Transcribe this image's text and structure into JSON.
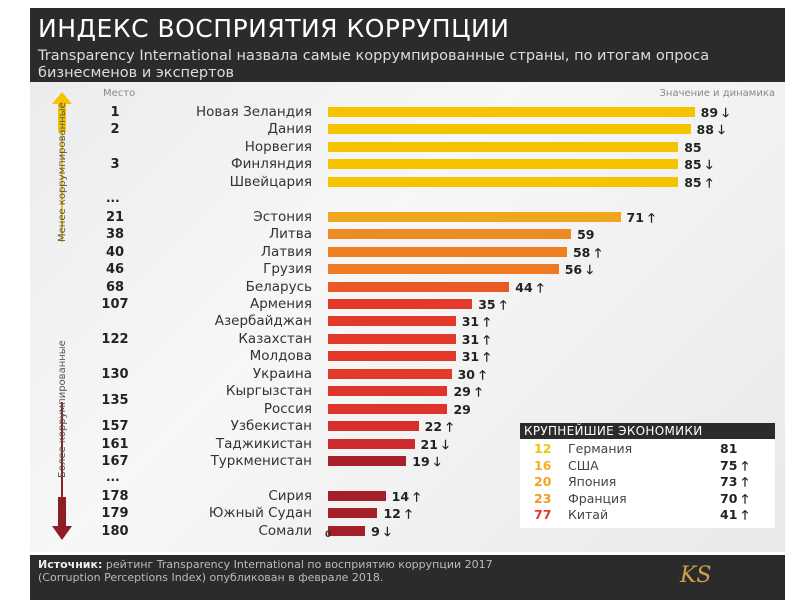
{
  "header": {
    "title": "ИНДЕКС ВОСПРИЯТИЯ КОРРУПЦИИ",
    "subtitle": "Transparency International назвала самые коррумпированные страны, по итогам опроса бизнесменов и экспертов"
  },
  "chart_data": {
    "type": "bar",
    "orientation": "horizontal",
    "col_rank": "Место",
    "col_value": "Значение и динамика",
    "side_top": "Менее коррумпированные",
    "side_bottom": "Более коррумпированные",
    "xmin": 0,
    "axis_zero_label": "0",
    "ellipsis": "...",
    "rows": [
      {
        "rank": "1",
        "country": "Новая Зеландия",
        "value": 89,
        "trend": "down",
        "color": "#f5c400"
      },
      {
        "rank": "2",
        "country": "Дания",
        "value": 88,
        "trend": "down",
        "color": "#f5c400"
      },
      {
        "rank": "",
        "country": "Норвегия",
        "value": 85,
        "trend": "",
        "color": "#f5c400"
      },
      {
        "rank": "3",
        "country": "Финляндия",
        "value": 85,
        "trend": "down",
        "color": "#f5c400"
      },
      {
        "rank": "",
        "country": "Швейцария",
        "value": 85,
        "trend": "up",
        "color": "#f5c400"
      },
      {
        "sep": true
      },
      {
        "rank": "21",
        "country": "Эстония",
        "value": 71,
        "trend": "up",
        "color": "#f2a51e"
      },
      {
        "rank": "38",
        "country": "Литва",
        "value": 59,
        "trend": "",
        "color": "#ef8a22"
      },
      {
        "rank": "40",
        "country": "Латвия",
        "value": 58,
        "trend": "up",
        "color": "#ef8022"
      },
      {
        "rank": "46",
        "country": "Грузия",
        "value": 56,
        "trend": "down",
        "color": "#ee7a23"
      },
      {
        "rank": "68",
        "country": "Беларусь",
        "value": 44,
        "trend": "up",
        "color": "#ea5a27"
      },
      {
        "rank": "107",
        "country": "Армения",
        "value": 35,
        "trend": "up",
        "color": "#e2392b"
      },
      {
        "rank": "",
        "country": "Азербайджан",
        "value": 31,
        "trend": "up",
        "color": "#e2392b"
      },
      {
        "rank": "122",
        "country": "Казахстан",
        "value": 31,
        "trend": "up",
        "color": "#e2392b"
      },
      {
        "rank": "",
        "country": "Молдова",
        "value": 31,
        "trend": "up",
        "color": "#e2392b"
      },
      {
        "rank": "130",
        "country": "Украина",
        "value": 30,
        "trend": "up",
        "color": "#e2392b"
      },
      {
        "rank": "135",
        "country": "Кыргызстан",
        "value": 29,
        "trend": "up",
        "color": "#de342c",
        "rank_between": true
      },
      {
        "rank": "",
        "country": "Россия",
        "value": 29,
        "trend": "",
        "color": "#de342c"
      },
      {
        "rank": "157",
        "country": "Узбекистан",
        "value": 22,
        "trend": "up",
        "color": "#d62f2d"
      },
      {
        "rank": "161",
        "country": "Таджикистан",
        "value": 21,
        "trend": "down",
        "color": "#cc2c2d"
      },
      {
        "rank": "167",
        "country": "Туркменистан",
        "value": 19,
        "trend": "down",
        "color": "#a8202a"
      },
      {
        "sep": true
      },
      {
        "rank": "178",
        "country": "Сирия",
        "value": 14,
        "trend": "up",
        "color": "#a3202a"
      },
      {
        "rank": "179",
        "country": "Южный Судан",
        "value": 12,
        "trend": "up",
        "color": "#a3202a"
      },
      {
        "rank": "180",
        "country": "Сомали",
        "value": 9,
        "trend": "down",
        "color": "#a3202a"
      }
    ]
  },
  "economies": {
    "title": "КРУПНЕЙШИЕ ЭКОНОМИКИ",
    "rows": [
      {
        "rank": "12",
        "country": "Германия",
        "value": "81",
        "trend": "",
        "color": "#f5c400"
      },
      {
        "rank": "16",
        "country": "США",
        "value": "75",
        "trend": "up",
        "color": "#f2b21e"
      },
      {
        "rank": "20",
        "country": "Япония",
        "value": "73",
        "trend": "up",
        "color": "#f0a520"
      },
      {
        "rank": "23",
        "country": "Франция",
        "value": "70",
        "trend": "up",
        "color": "#ef9a22"
      },
      {
        "rank": "77",
        "country": "Китай",
        "value": "41",
        "trend": "up",
        "color": "#e2392b"
      }
    ]
  },
  "footer": {
    "source_label": "Источник:",
    "source_text": " рейтинг Transparency International по восприятию коррупции 2017 (Corruption Perceptions Index) опубликован в феврале 2018.",
    "logo": "KS"
  }
}
